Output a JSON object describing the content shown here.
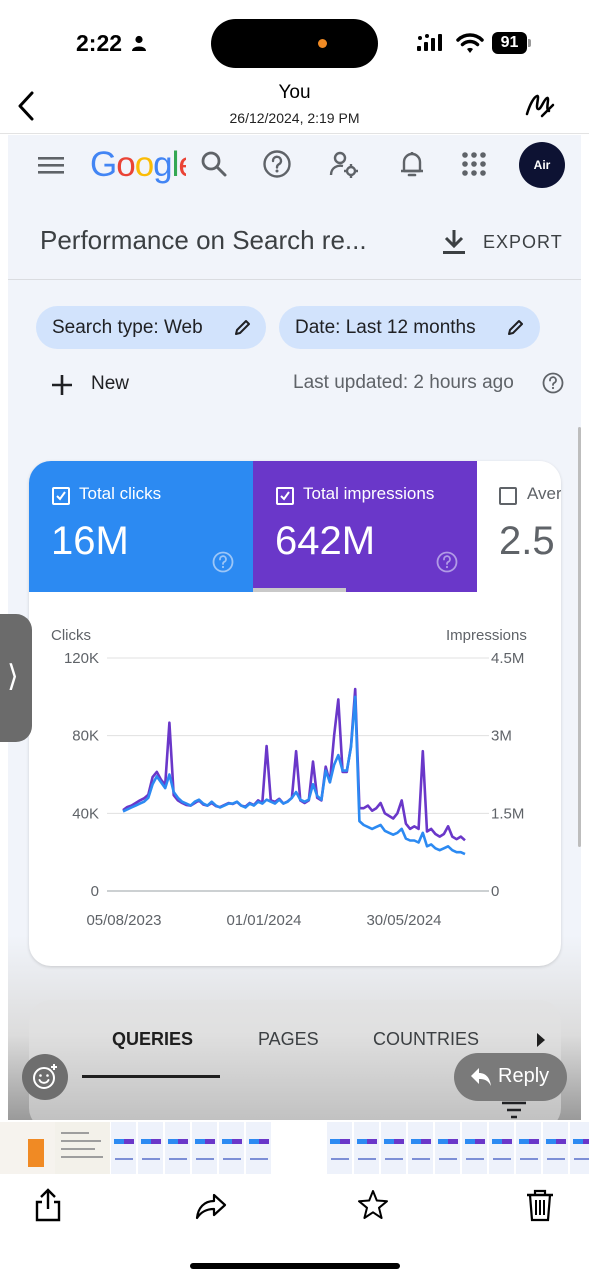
{
  "status_bar": {
    "time": "2:22",
    "battery": "91"
  },
  "message": {
    "sender": "You",
    "date": "26/12/2024, 2:19 PM"
  },
  "gsc": {
    "logo_letters": [
      {
        "ch": "G",
        "color": "#4285F4"
      },
      {
        "ch": "o",
        "color": "#EA4335"
      },
      {
        "ch": "o",
        "color": "#FBBC05"
      },
      {
        "ch": "g",
        "color": "#4285F4"
      },
      {
        "ch": "l",
        "color": "#34A853"
      },
      {
        "ch": "e",
        "color": "#EA4335"
      }
    ],
    "avatar_text": "Air",
    "page_title": "Performance on Search re...",
    "export_label": "EXPORT",
    "filters": {
      "search_type": "Search type: Web",
      "date": "Date: Last 12 months"
    },
    "new_label": "New",
    "last_updated": "Last updated: 2 hours ago",
    "metrics": [
      {
        "label": "Total clicks",
        "value": "16M",
        "checked": true,
        "color": "#2c8af2"
      },
      {
        "label": "Total impressions",
        "value": "642M",
        "checked": true,
        "color": "#6a37c9"
      },
      {
        "label": "Aver",
        "value": "2.5",
        "checked": false
      }
    ],
    "tabs": [
      "QUERIES",
      "PAGES",
      "COUNTRIES"
    ]
  },
  "chart_data": {
    "type": "line",
    "left_axis": {
      "label": "Clicks",
      "ticks": [
        "0",
        "40K",
        "80K",
        "120K"
      ],
      "range": [
        0,
        120000
      ]
    },
    "right_axis": {
      "label": "Impressions",
      "ticks": [
        "0",
        "1.5M",
        "3M",
        "4.5M"
      ],
      "range": [
        0,
        4500000
      ]
    },
    "x_ticks": [
      "05/08/2023",
      "01/01/2024",
      "30/05/2024"
    ],
    "grid": true,
    "series": [
      {
        "axis": "right",
        "color": "#6a37c9",
        "values": [
          1560000,
          1620000,
          1650000,
          1700000,
          1750000,
          1790000,
          1860000,
          2200000,
          2300000,
          2150000,
          2050000,
          3250000,
          1850000,
          1750000,
          1700000,
          1660000,
          1650000,
          1700000,
          1750000,
          1670000,
          1650000,
          1700000,
          1640000,
          1620000,
          1660000,
          1700000,
          1680000,
          1720000,
          1650000,
          1630000,
          1700000,
          1660000,
          1750000,
          1700000,
          2800000,
          1750000,
          1720000,
          1780000,
          1690000,
          1730000,
          1800000,
          2700000,
          1750000,
          1700000,
          1750000,
          2500000,
          1800000,
          1750000,
          2400000,
          2100000,
          3000000,
          3700000,
          2300000,
          2300000,
          2800000,
          3900000,
          1600000,
          1600000,
          1650000,
          1550000,
          1600000,
          1700000,
          1500000,
          1450000,
          1400000,
          1500000,
          1750000,
          1300000,
          1200000,
          1250000,
          1200000,
          2700000,
          1150000,
          1200000,
          1100000,
          1050000,
          1100000,
          1250000,
          1050000,
          1000000,
          1050000,
          980000
        ]
      },
      {
        "axis": "left",
        "color": "#2c8af2",
        "values": [
          41000,
          42000,
          43000,
          44000,
          45000,
          46000,
          48000,
          55000,
          59000,
          56000,
          53000,
          60000,
          51000,
          48000,
          46000,
          45000,
          44000,
          46000,
          47000,
          45000,
          44000,
          46000,
          44000,
          43000,
          44000,
          45000,
          45000,
          46000,
          44000,
          43000,
          45000,
          44000,
          46000,
          45000,
          47000,
          46000,
          45000,
          47000,
          45000,
          46000,
          48000,
          51000,
          47000,
          46000,
          47000,
          55000,
          49000,
          47000,
          62000,
          56000,
          65000,
          70000,
          62000,
          62000,
          74000,
          100000,
          36000,
          34000,
          33000,
          32000,
          33000,
          34000,
          31000,
          30000,
          29000,
          30000,
          32000,
          27000,
          26000,
          26000,
          25000,
          30000,
          23000,
          24000,
          22000,
          21000,
          22000,
          23000,
          21000,
          20000,
          20000,
          19000
        ]
      }
    ]
  }
}
